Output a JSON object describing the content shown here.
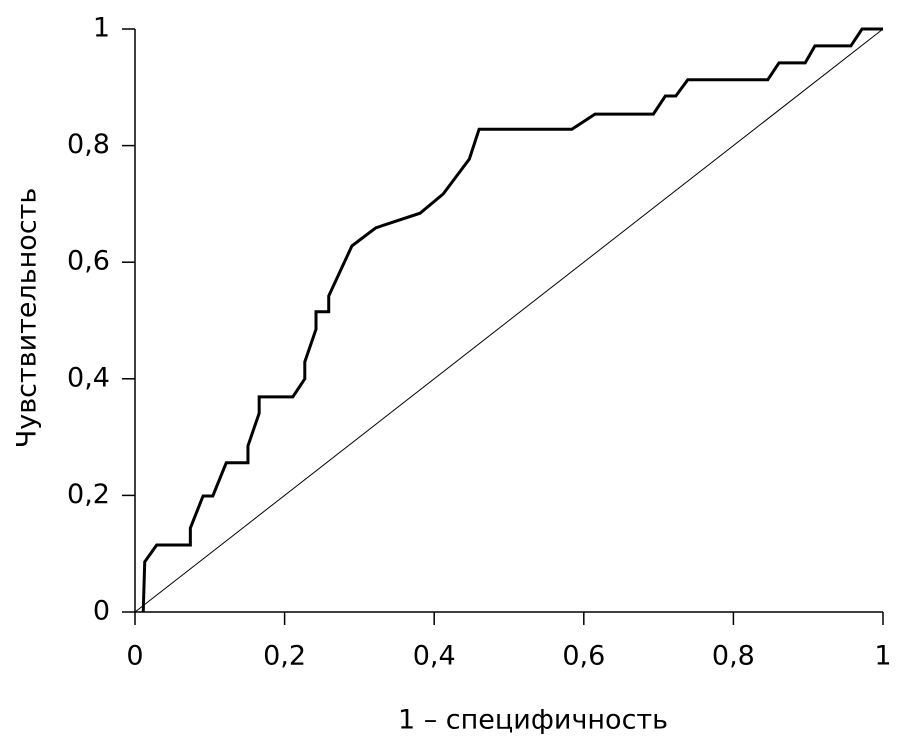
{
  "chart_data": {
    "type": "line",
    "xlabel": "1 – специфичность",
    "ylabel": "Чувствительность",
    "xlim": [
      0,
      1
    ],
    "ylim": [
      0,
      1
    ],
    "xticks": [
      0,
      {
        "value": 0.2,
        "label": "0,2"
      },
      {
        "value": 0.4,
        "label": "0,4"
      },
      {
        "value": 0.6,
        "label": "0,6"
      },
      {
        "value": 0.8,
        "label": "0,8"
      },
      1
    ],
    "yticks": [
      0,
      {
        "value": 0.2,
        "label": "0,2"
      },
      {
        "value": 0.4,
        "label": "0,4"
      },
      {
        "value": 0.6,
        "label": "0,6"
      },
      {
        "value": 0.8,
        "label": "0,8"
      },
      1
    ],
    "grid": false,
    "series": [
      {
        "color": "#000000",
        "line_width": 3,
        "x": [
          0.011,
          0.013,
          0.029,
          0.074,
          0.074,
          0.091,
          0.104,
          0.122,
          0.151,
          0.151,
          0.166,
          0.166,
          0.211,
          0.227,
          0.227,
          0.242,
          0.242,
          0.259,
          0.259,
          0.29,
          0.322,
          0.381,
          0.412,
          0.447,
          0.46,
          0.584,
          0.615,
          0.693,
          0.709,
          0.723,
          0.739,
          0.846,
          0.861,
          0.896,
          0.909,
          0.957,
          0.972,
          1
        ],
        "values": [
          0,
          0.086,
          0.115,
          0.115,
          0.144,
          0.199,
          0.199,
          0.256,
          0.256,
          0.285,
          0.341,
          0.369,
          0.369,
          0.4,
          0.429,
          0.485,
          0.515,
          0.515,
          0.542,
          0.628,
          0.659,
          0.684,
          0.717,
          0.777,
          0.828,
          0.828,
          0.854,
          0.854,
          0.885,
          0.885,
          0.913,
          0.913,
          0.942,
          0.942,
          0.971,
          0.971,
          1,
          1
        ]
      },
      {
        "color": "#000000",
        "line_width": 1,
        "x": [
          0,
          1
        ],
        "values": [
          0,
          1
        ]
      }
    ]
  }
}
